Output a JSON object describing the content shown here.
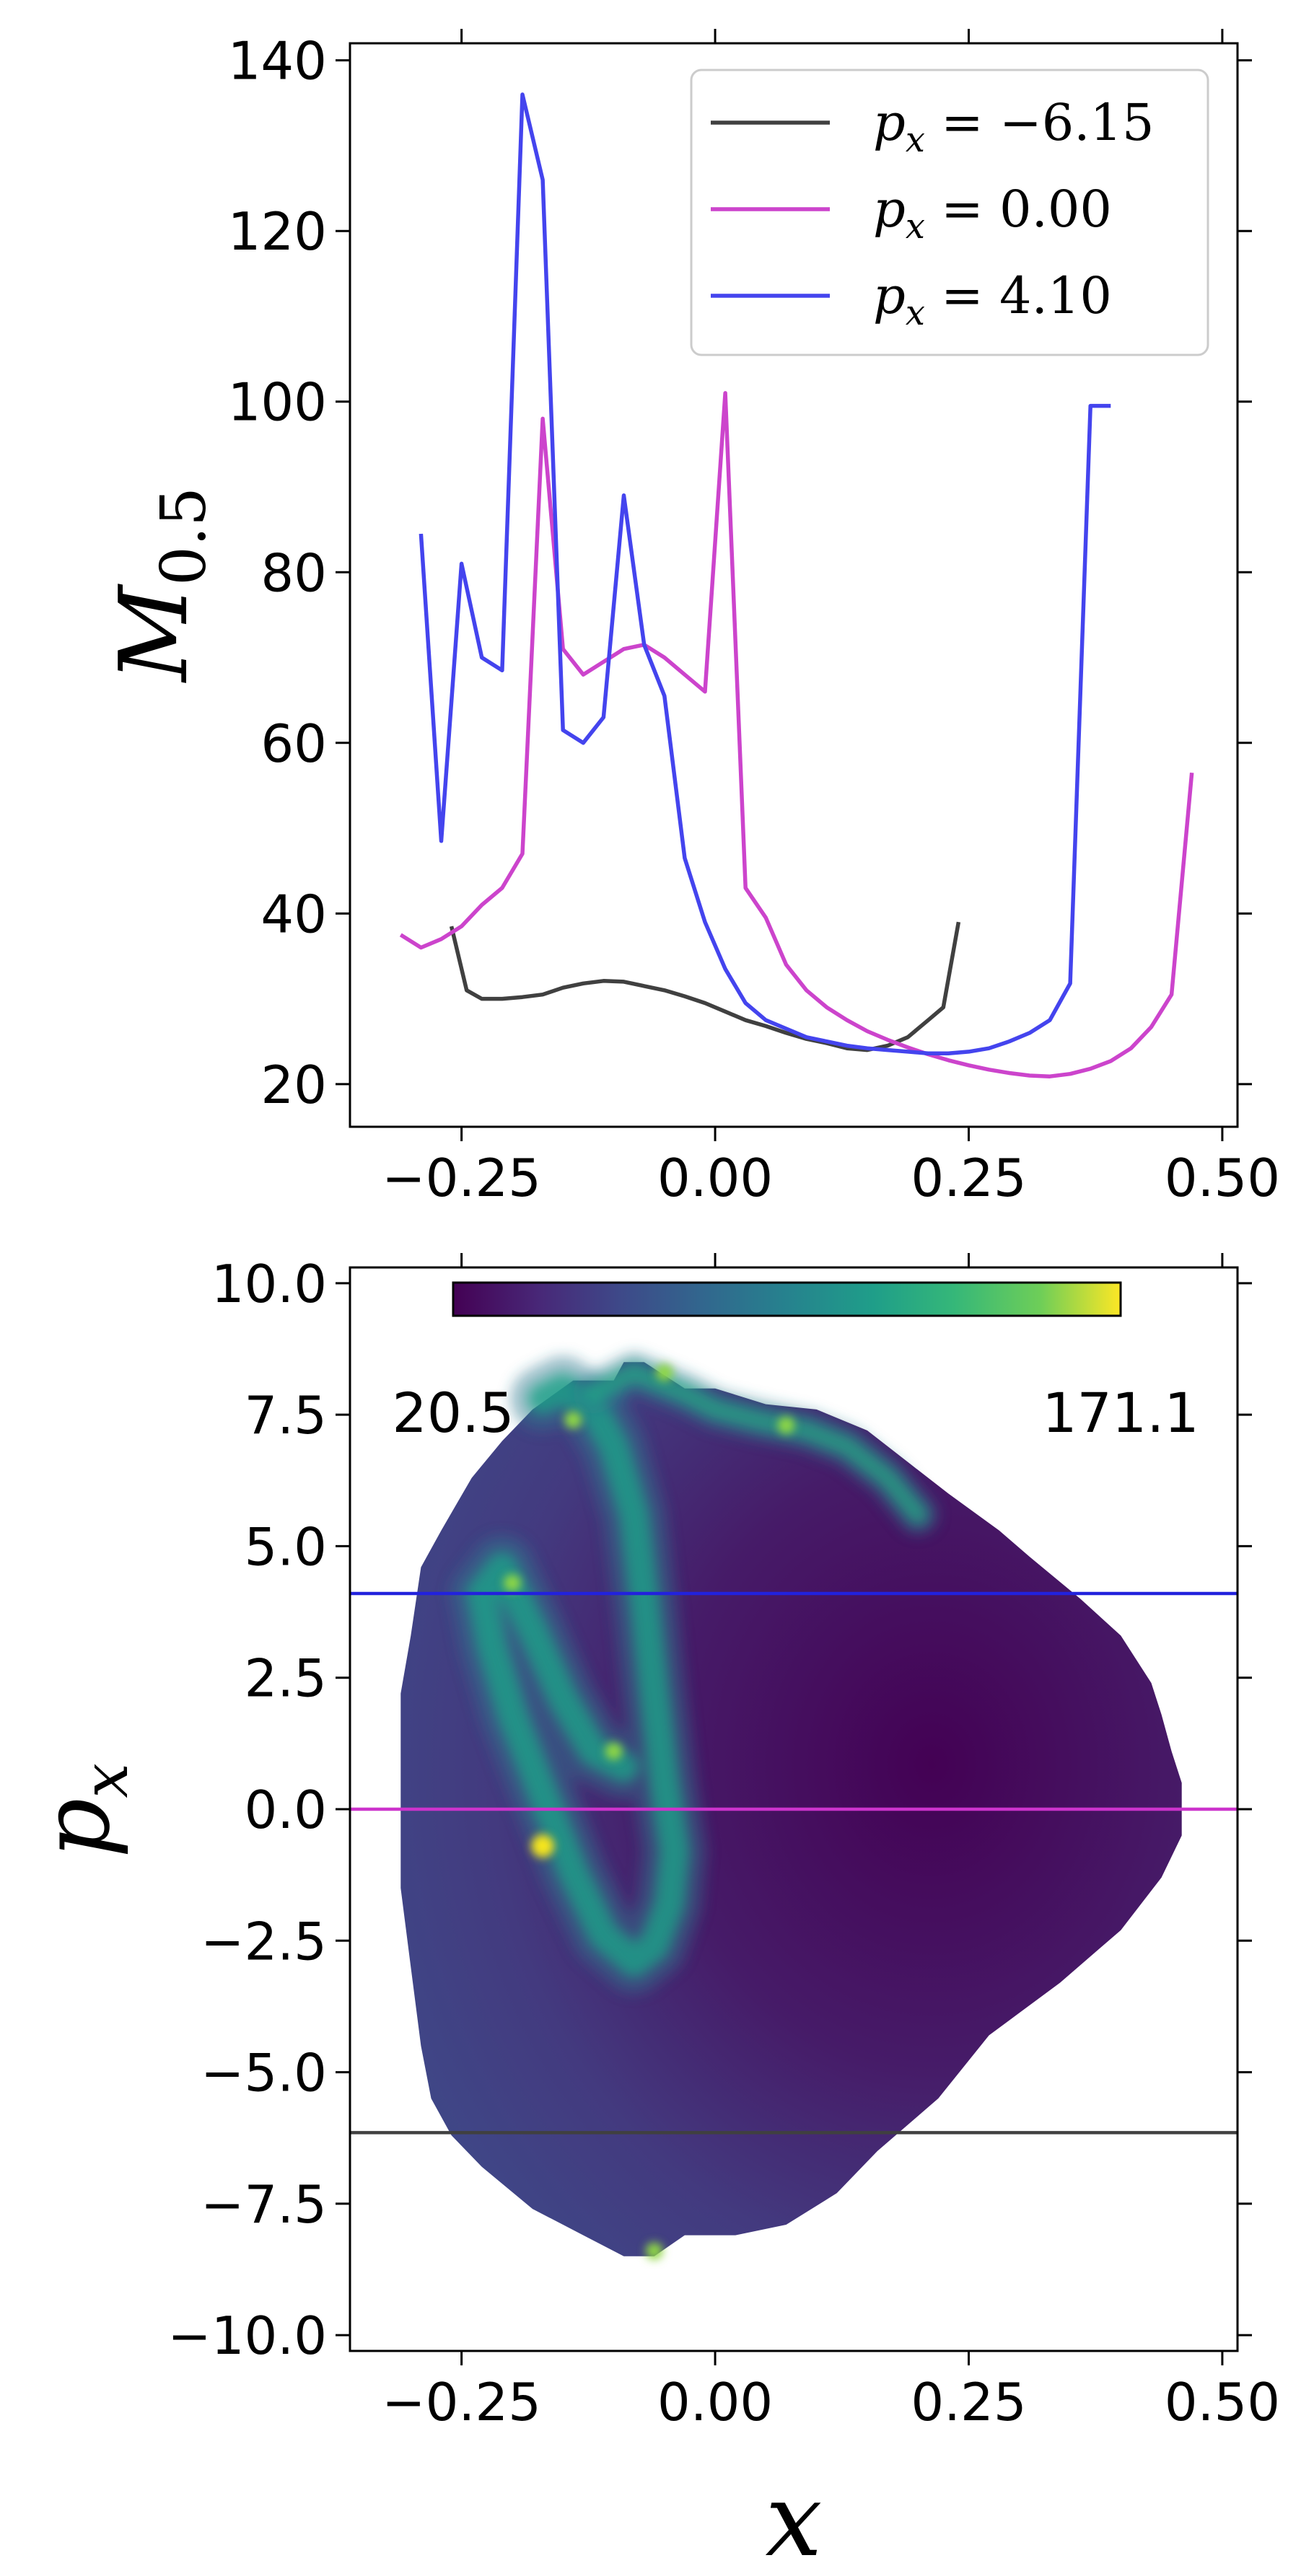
{
  "chart_data": [
    {
      "type": "line",
      "xlim": [
        -0.36,
        0.515
      ],
      "ylim": [
        15,
        142
      ],
      "xticks": [
        -0.25,
        0.0,
        0.25,
        0.5
      ],
      "xtick_labels": [
        "−0.25",
        "0.00",
        "0.25",
        "0.50"
      ],
      "yticks": [
        20,
        40,
        60,
        80,
        100,
        120,
        140
      ],
      "ytick_labels": [
        "20",
        "40",
        "60",
        "80",
        "100",
        "120",
        "140"
      ],
      "ylabel": "M",
      "ylabel_sub": "0.5",
      "legend": {
        "placement": "top-right"
      },
      "series": [
        {
          "name": "p",
          "name_sub": "x",
          "name_rest": " = −6.15",
          "color": "#404040",
          "x": [
            -0.26,
            -0.245,
            -0.23,
            -0.21,
            -0.19,
            -0.17,
            -0.15,
            -0.13,
            -0.11,
            -0.09,
            -0.07,
            -0.05,
            -0.03,
            -0.01,
            0.01,
            0.03,
            0.05,
            0.07,
            0.09,
            0.11,
            0.13,
            0.15,
            0.17,
            0.19,
            0.21,
            0.225,
            0.24
          ],
          "y": [
            38.5,
            31,
            30,
            30,
            30.2,
            30.5,
            31.3,
            31.8,
            32.1,
            32,
            31.5,
            31,
            30.3,
            29.5,
            28.5,
            27.5,
            26.8,
            26,
            25.3,
            24.8,
            24.2,
            24,
            24.5,
            25.5,
            27.5,
            29,
            39
          ]
        },
        {
          "name": "p",
          "name_sub": "x",
          "name_rest": " = 0.00",
          "color": "#cc44cc",
          "x": [
            -0.31,
            -0.29,
            -0.27,
            -0.25,
            -0.23,
            -0.21,
            -0.19,
            -0.17,
            -0.15,
            -0.13,
            -0.11,
            -0.09,
            -0.07,
            -0.05,
            -0.03,
            -0.01,
            0.01,
            0.03,
            0.05,
            0.07,
            0.09,
            0.11,
            0.13,
            0.15,
            0.17,
            0.19,
            0.21,
            0.23,
            0.25,
            0.27,
            0.29,
            0.31,
            0.33,
            0.35,
            0.37,
            0.39,
            0.41,
            0.43,
            0.45,
            0.47
          ],
          "y": [
            37.5,
            36,
            37,
            38.5,
            41,
            43,
            47,
            98,
            71,
            68,
            69.5,
            71,
            71.5,
            70,
            68,
            66,
            101,
            43,
            39.5,
            34,
            31,
            29,
            27.5,
            26.2,
            25.2,
            24.3,
            23.5,
            22.8,
            22.2,
            21.7,
            21.3,
            21,
            20.9,
            21.2,
            21.8,
            22.7,
            24.2,
            26.7,
            30.5,
            56.5
          ]
        },
        {
          "name": "p",
          "name_sub": "x",
          "name_rest": " = 4.10",
          "color": "#4444ee",
          "x": [
            -0.29,
            -0.27,
            -0.25,
            -0.23,
            -0.21,
            -0.19,
            -0.17,
            -0.15,
            -0.13,
            -0.11,
            -0.09,
            -0.07,
            -0.05,
            -0.03,
            -0.01,
            0.01,
            0.03,
            0.05,
            0.07,
            0.09,
            0.11,
            0.13,
            0.15,
            0.17,
            0.19,
            0.21,
            0.23,
            0.25,
            0.27,
            0.29,
            0.31,
            0.33,
            0.35,
            0.37,
            0.39
          ],
          "y": [
            84.5,
            48.5,
            81,
            70,
            68.5,
            136,
            126,
            61.5,
            60,
            63,
            89,
            71.5,
            65.5,
            46.5,
            39,
            33.5,
            29.5,
            27.5,
            26.5,
            25.5,
            25,
            24.5,
            24.2,
            24,
            23.8,
            23.6,
            23.6,
            23.8,
            24.2,
            25,
            26,
            27.5,
            31.8,
            99.5,
            99.5
          ]
        }
      ]
    },
    {
      "type": "heatmap",
      "xlim": [
        -0.36,
        0.515
      ],
      "ylim": [
        -10.3,
        10.3
      ],
      "xticks": [
        -0.25,
        0.0,
        0.25,
        0.5
      ],
      "xtick_labels": [
        "−0.25",
        "0.00",
        "0.25",
        "0.50"
      ],
      "yticks": [
        -10,
        -7.5,
        -5,
        -2.5,
        0,
        2.5,
        5,
        7.5,
        10
      ],
      "ytick_labels": [
        "−10.0",
        "−7.5",
        "−5.0",
        "−2.5",
        "0.0",
        "2.5",
        "5.0",
        "7.5",
        "10.0"
      ],
      "xlabel": "x",
      "ylabel": "p",
      "ylabel_sub": "x",
      "colormap": "viridis",
      "colorbar": {
        "min": 20.5,
        "max": 171.1,
        "min_label": "20.5",
        "max_label": "171.1",
        "placement": "top"
      },
      "region_polygon": [
        [
          -0.14,
          8.15
        ],
        [
          -0.1,
          8.15
        ],
        [
          -0.09,
          8.5
        ],
        [
          -0.07,
          8.5
        ],
        [
          -0.03,
          8.0
        ],
        [
          0.0,
          8.0
        ],
        [
          0.05,
          7.7
        ],
        [
          0.1,
          7.6
        ],
        [
          0.15,
          7.2
        ],
        [
          0.19,
          6.6
        ],
        [
          0.23,
          6.0
        ],
        [
          0.28,
          5.3
        ],
        [
          0.31,
          4.8
        ],
        [
          0.36,
          4.0
        ],
        [
          0.4,
          3.3
        ],
        [
          0.43,
          2.4
        ],
        [
          0.44,
          1.8
        ],
        [
          0.45,
          1.1
        ],
        [
          0.46,
          0.5
        ],
        [
          0.46,
          -0.5
        ],
        [
          0.44,
          -1.3
        ],
        [
          0.4,
          -2.3
        ],
        [
          0.34,
          -3.3
        ],
        [
          0.27,
          -4.3
        ],
        [
          0.22,
          -5.5
        ],
        [
          0.16,
          -6.5
        ],
        [
          0.12,
          -7.3
        ],
        [
          0.07,
          -7.9
        ],
        [
          0.02,
          -8.1
        ],
        [
          -0.03,
          -8.1
        ],
        [
          -0.06,
          -8.5
        ],
        [
          -0.09,
          -8.5
        ],
        [
          -0.13,
          -8.1
        ],
        [
          -0.18,
          -7.6
        ],
        [
          -0.23,
          -6.8
        ],
        [
          -0.26,
          -6.2
        ],
        [
          -0.28,
          -5.5
        ],
        [
          -0.29,
          -4.5
        ],
        [
          -0.3,
          -3.0
        ],
        [
          -0.31,
          -1.5
        ],
        [
          -0.31,
          0.0
        ],
        [
          -0.31,
          2.2
        ],
        [
          -0.3,
          3.3
        ],
        [
          -0.29,
          4.6
        ],
        [
          -0.27,
          5.3
        ],
        [
          -0.24,
          6.3
        ],
        [
          -0.21,
          7.0
        ],
        [
          -0.18,
          7.6
        ]
      ],
      "bright_band": [
        [
          -0.17,
          7.8
        ],
        [
          -0.15,
          8.0
        ],
        [
          -0.12,
          7.6
        ],
        [
          -0.1,
          6.9
        ],
        [
          -0.08,
          5.6
        ],
        [
          -0.07,
          4.0
        ],
        [
          -0.06,
          2.2
        ],
        [
          -0.05,
          0.5
        ],
        [
          -0.04,
          -0.8
        ],
        [
          -0.045,
          -1.8
        ],
        [
          -0.06,
          -2.6
        ],
        [
          -0.08,
          -2.9
        ],
        [
          -0.11,
          -2.4
        ],
        [
          -0.14,
          -1.2
        ],
        [
          -0.17,
          0.3
        ],
        [
          -0.2,
          1.8
        ],
        [
          -0.22,
          3.1
        ],
        [
          -0.23,
          4.1
        ],
        [
          -0.21,
          4.6
        ],
        [
          -0.18,
          3.4
        ],
        [
          -0.15,
          2.1
        ],
        [
          -0.12,
          1.1
        ],
        [
          -0.09,
          0.8
        ]
      ],
      "bright_band_outer": [
        [
          -0.12,
          7.9
        ],
        [
          -0.08,
          8.3
        ],
        [
          -0.03,
          7.9
        ],
        [
          0.0,
          7.6
        ],
        [
          0.04,
          7.4
        ],
        [
          0.09,
          7.2
        ],
        [
          0.13,
          6.9
        ],
        [
          0.17,
          6.3
        ],
        [
          0.2,
          5.6
        ]
      ],
      "hotspots": [
        [
          -0.1,
          1.1
        ],
        [
          -0.17,
          -0.7
        ],
        [
          -0.2,
          4.3
        ],
        [
          -0.14,
          7.4
        ],
        [
          0.07,
          7.3
        ],
        [
          -0.05,
          8.3
        ],
        [
          -0.06,
          -8.4
        ]
      ],
      "cuts": [
        {
          "p_x": 4.1,
          "color": "#2222dd"
        },
        {
          "p_x": 0.0,
          "color": "#cc33cc"
        },
        {
          "p_x": -6.15,
          "color": "#404040"
        }
      ]
    }
  ]
}
